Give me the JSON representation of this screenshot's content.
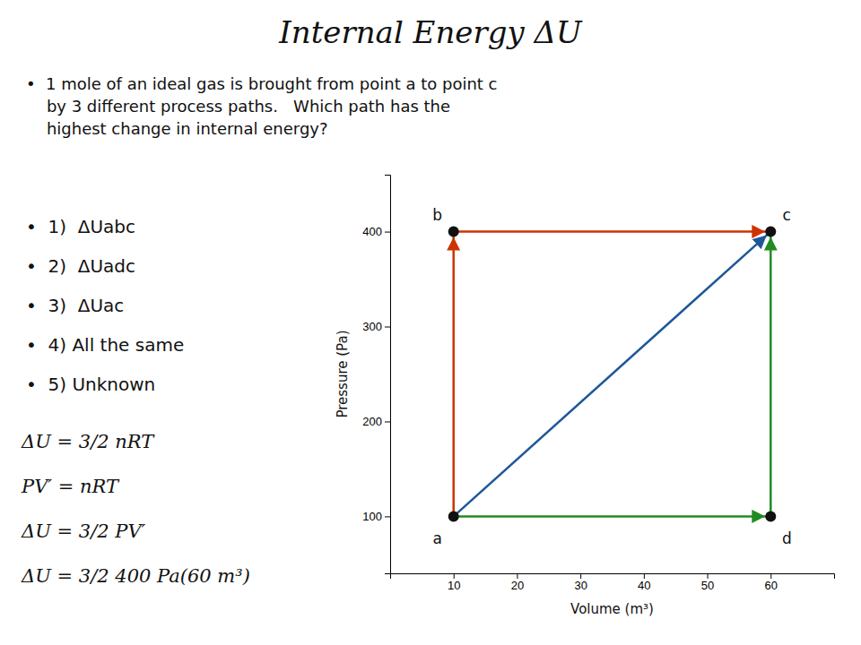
{
  "chart_data": {
    "type": "line",
    "title": "Internal Energy ΔU",
    "annotations": {
      "intro": [
        "•  1 mole of an ideal gas is brought from point a to point c",
        "    by 3 different process paths.   Which path has the",
        "    highest change in internal energy?"
      ],
      "choices": [
        "•  1)  ΔUabc",
        "•  2)  ΔUadc",
        "•  3)  ΔUac",
        "•  4) All the same",
        "•  5) Unknown"
      ],
      "equations": [
        "ΔU = 3/2 nRT",
        "PV′ = nRT",
        "ΔU = 3/2 PV′",
        "ΔU = 3/2 400 Pa(60 m³)"
      ]
    },
    "xlabel": "Volume (m³)",
    "ylabel": "Pressure (Pa)",
    "xlim": [
      0,
      70
    ],
    "ylim": [
      40,
      460
    ],
    "xticks": [
      10,
      20,
      30,
      40,
      50,
      60
    ],
    "yticks": [
      100,
      200,
      300,
      400
    ],
    "grid": false,
    "series": [
      {
        "x": [
          10,
          10,
          60
        ],
        "values": [
          100,
          400,
          400
        ],
        "color": "#CC3300",
        "marker": "arrow"
      },
      {
        "x": [
          10,
          60,
          60
        ],
        "values": [
          100,
          100,
          400
        ],
        "color": "#228B22",
        "marker": "arrow"
      },
      {
        "x": [
          10,
          60
        ],
        "values": [
          100,
          400
        ],
        "color": "#1E5799",
        "marker": "arrow"
      },
      {
        "type": "scatter",
        "x": [
          10,
          10,
          60,
          60
        ],
        "values": [
          100,
          400,
          400,
          100
        ],
        "point_labels": [
          "a",
          "b",
          "c",
          "d"
        ],
        "color": "#111111",
        "marker": "circle"
      }
    ]
  }
}
